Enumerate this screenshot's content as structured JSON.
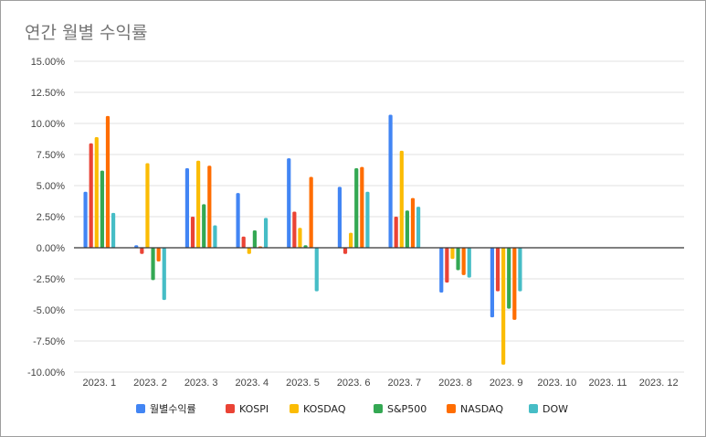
{
  "chart_data": {
    "type": "bar",
    "title": "연간 월별 수익률",
    "categories": [
      "2023. 1",
      "2023. 2",
      "2023. 3",
      "2023. 4",
      "2023. 5",
      "2023. 6",
      "2023. 7",
      "2023. 8",
      "2023. 9",
      "2023. 10",
      "2023. 11",
      "2023. 12"
    ],
    "ylim": [
      -10,
      15
    ],
    "yticks": [
      "15.00%",
      "12.50%",
      "10.00%",
      "7.50%",
      "5.00%",
      "2.50%",
      "0.00%",
      "-2.50%",
      "-5.00%",
      "-7.50%",
      "-10.00%"
    ],
    "ytick_values": [
      15,
      12.5,
      10,
      7.5,
      5,
      2.5,
      0,
      -2.5,
      -5,
      -7.5,
      -10
    ],
    "grid": true,
    "legend_position": "bottom",
    "series": [
      {
        "name": "월별수익률",
        "color": "#4285f4",
        "values": [
          4.5,
          0.2,
          6.4,
          4.4,
          7.2,
          4.9,
          10.7,
          -3.6,
          -5.6,
          null,
          null,
          null
        ]
      },
      {
        "name": "KOSPI",
        "color": "#ea4335",
        "values": [
          8.4,
          -0.5,
          2.5,
          0.9,
          2.9,
          -0.5,
          2.5,
          -2.8,
          -3.5,
          null,
          null,
          null
        ]
      },
      {
        "name": "KOSDAQ",
        "color": "#fbbc04",
        "values": [
          8.9,
          6.8,
          7.0,
          -0.5,
          1.6,
          1.2,
          7.8,
          -0.9,
          -9.4,
          null,
          null,
          null
        ]
      },
      {
        "name": "S&P500",
        "color": "#34a853",
        "values": [
          6.2,
          -2.6,
          3.5,
          1.4,
          0.2,
          6.4,
          3.0,
          -1.8,
          -4.9,
          null,
          null,
          null
        ]
      },
      {
        "name": "NASDAQ",
        "color": "#ff6d01",
        "values": [
          10.6,
          -1.1,
          6.6,
          0.0,
          5.7,
          6.5,
          4.0,
          -2.2,
          -5.8,
          null,
          null,
          null
        ]
      },
      {
        "name": "DOW",
        "color": "#46bdc6",
        "values": [
          2.8,
          -4.2,
          1.8,
          2.4,
          -3.5,
          4.5,
          3.3,
          -2.4,
          -3.5,
          null,
          null,
          null
        ]
      }
    ]
  }
}
